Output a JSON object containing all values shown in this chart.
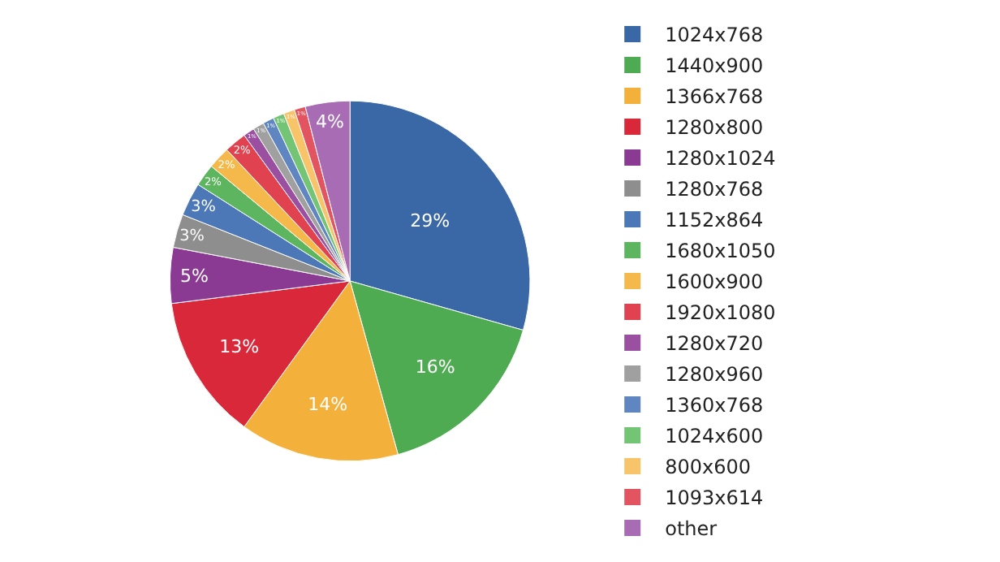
{
  "chart_data": {
    "type": "pie",
    "categories": [
      "1024x768",
      "1440x900",
      "1366x768",
      "1280x800",
      "1280x1024",
      "1280x768",
      "1152x864",
      "1680x1050",
      "1600x900",
      "1920x1080",
      "1280x720",
      "1280x960",
      "1360x768",
      "1024x600",
      "800x600",
      "1093x614",
      "other"
    ],
    "values": [
      29.4,
      16.3,
      14.3,
      13,
      5,
      3,
      3,
      2,
      2,
      2,
      1,
      1,
      1,
      1,
      1,
      1,
      4
    ],
    "value_labels": [
      "29%",
      "16%",
      "14%",
      "13%",
      "5%",
      "3%",
      "3%",
      "2%",
      "2%",
      "2%",
      "1%",
      "1%",
      "1%",
      "1%",
      "1%",
      "1%",
      "4%"
    ],
    "colors": [
      "#3a67a5",
      "#4fab52",
      "#f3b03a",
      "#d9283a",
      "#8a3a92",
      "#8e8e8e",
      "#4c78b8",
      "#5db55f",
      "#f5b84a",
      "#e0434f",
      "#9a4fa0",
      "#a0a0a0",
      "#5f86c0",
      "#74c476",
      "#f7c46a",
      "#e25560",
      "#a86cb4"
    ],
    "legend": "right"
  }
}
